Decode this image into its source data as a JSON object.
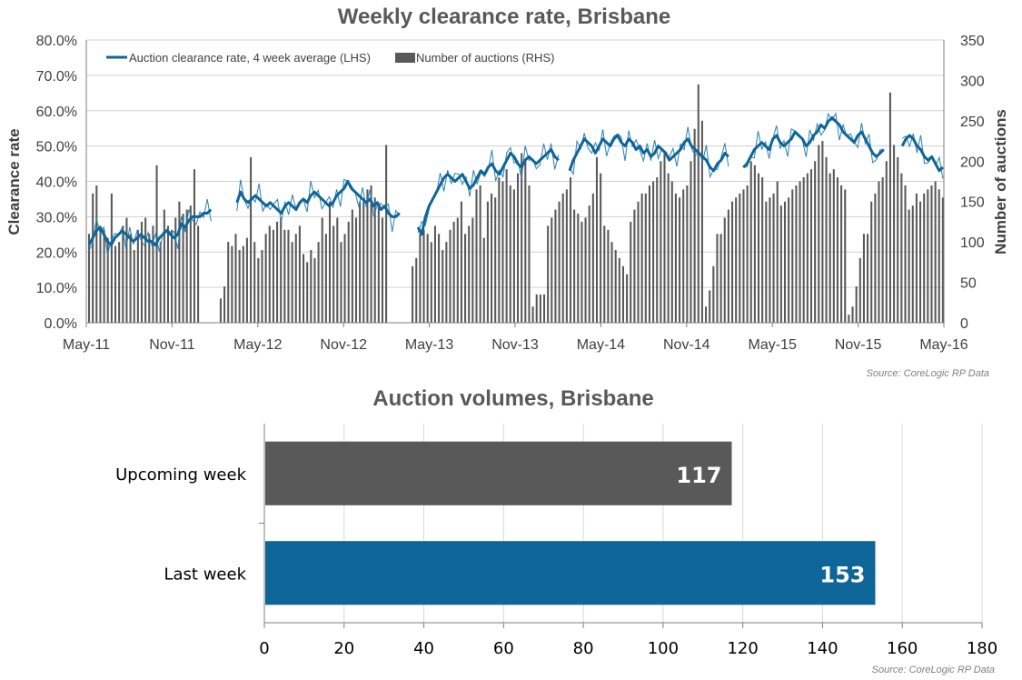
{
  "chart_data": [
    {
      "type": "line+bar",
      "title": "Weekly clearance rate, Brisbane",
      "source": "Source: CoreLogic RP Data",
      "ylabel_left": "Clearance rate",
      "ylabel_right": "Number of auctions",
      "ylim_left": [
        0,
        0.8
      ],
      "ylim_right": [
        0,
        350
      ],
      "yticks_left": [
        "0.0%",
        "10.0%",
        "20.0%",
        "30.0%",
        "40.0%",
        "50.0%",
        "60.0%",
        "70.0%",
        "80.0%"
      ],
      "yticks_right": [
        "0",
        "50",
        "100",
        "150",
        "200",
        "250",
        "300",
        "350"
      ],
      "xticks": [
        "May-11",
        "Nov-11",
        "May-12",
        "Nov-12",
        "May-13",
        "Nov-13",
        "May-14",
        "Nov-14",
        "May-15",
        "Nov-15",
        "May-16"
      ],
      "legend_position": "top-left",
      "grid": true,
      "colors": {
        "line": "#0e6597",
        "line_thin": "#2a7fb4",
        "bars": "#595959"
      },
      "series": [
        {
          "name": "Auction clearance rate, 4 week average (LHS)",
          "kind": "line",
          "axis": "left",
          "start": "2011-05",
          "weekly_values": [
            0.22,
            0.24,
            0.26,
            0.27,
            0.25,
            0.23,
            0.22,
            0.24,
            0.25,
            0.26,
            0.25,
            0.24,
            0.23,
            0.24,
            0.25,
            0.24,
            0.23,
            0.23,
            0.22,
            0.24,
            0.25,
            0.26,
            0.25,
            0.24,
            0.25,
            0.28,
            0.27,
            0.29,
            0.3,
            0.3,
            0.3,
            0.31,
            0.31,
            0.32,
            null,
            null,
            null,
            null,
            null,
            null,
            0.34,
            0.37,
            0.35,
            0.34,
            0.35,
            0.36,
            0.35,
            0.34,
            0.33,
            0.34,
            0.33,
            0.32,
            0.31,
            0.33,
            0.34,
            0.33,
            0.32,
            0.34,
            0.35,
            0.34,
            0.36,
            0.37,
            0.36,
            0.35,
            0.34,
            0.33,
            0.34,
            0.36,
            0.37,
            0.38,
            0.4,
            0.38,
            0.37,
            0.36,
            0.35,
            0.34,
            0.35,
            0.33,
            0.34,
            0.32,
            0.33,
            0.31,
            0.3,
            0.3,
            0.31,
            null,
            null,
            null,
            null,
            0.27,
            0.25,
            0.3,
            0.33,
            0.35,
            0.37,
            0.39,
            0.41,
            0.42,
            0.41,
            0.4,
            0.41,
            0.42,
            0.4,
            0.38,
            0.39,
            0.41,
            0.43,
            0.42,
            0.44,
            0.45,
            0.43,
            0.42,
            0.44,
            0.46,
            0.48,
            0.47,
            0.45,
            0.44,
            0.46,
            0.47,
            0.46,
            0.45,
            0.46,
            0.47,
            0.48,
            0.49,
            0.47,
            0.46,
            null,
            null,
            0.43,
            0.46,
            0.48,
            0.5,
            0.52,
            0.51,
            0.5,
            0.48,
            0.5,
            0.52,
            0.51,
            0.5,
            0.52,
            0.53,
            0.51,
            0.5,
            0.52,
            0.51,
            0.49,
            0.5,
            0.48,
            0.49,
            0.47,
            0.48,
            0.5,
            0.49,
            0.48,
            0.46,
            0.47,
            0.48,
            0.49,
            0.51,
            0.52,
            0.5,
            0.49,
            0.48,
            0.47,
            0.46,
            0.44,
            0.43,
            0.45,
            0.46,
            0.48,
            0.47,
            null,
            null,
            null,
            0.44,
            0.45,
            0.47,
            0.49,
            0.5,
            0.51,
            0.5,
            0.49,
            0.52,
            0.53,
            0.51,
            0.5,
            0.51,
            0.52,
            0.54,
            0.53,
            0.52,
            0.5,
            0.51,
            0.53,
            0.54,
            0.56,
            0.55,
            0.57,
            0.58,
            0.57,
            0.56,
            0.54,
            0.53,
            0.52,
            0.51,
            0.53,
            0.54,
            0.52,
            0.5,
            0.48,
            0.47,
            0.48,
            0.49,
            null,
            null,
            null,
            null,
            0.5,
            0.52,
            0.53,
            0.52,
            0.5,
            0.49,
            0.47,
            0.46,
            0.47,
            0.45,
            0.43,
            0.44
          ]
        },
        {
          "name": "Number of auctions (RHS)",
          "kind": "bar",
          "axis": "right",
          "start": "2011-05",
          "weekly_values": [
            110,
            160,
            170,
            120,
            115,
            105,
            160,
            95,
            100,
            120,
            130,
            110,
            90,
            115,
            125,
            130,
            110,
            120,
            195,
            100,
            140,
            120,
            115,
            130,
            150,
            135,
            140,
            145,
            190,
            120,
            0,
            0,
            0,
            0,
            0,
            30,
            45,
            100,
            95,
            110,
            90,
            95,
            105,
            205,
            100,
            80,
            90,
            110,
            120,
            115,
            125,
            130,
            115,
            115,
            100,
            110,
            120,
            85,
            75,
            90,
            80,
            100,
            130,
            110,
            150,
            120,
            130,
            100,
            110,
            125,
            140,
            130,
            150,
            150,
            165,
            170,
            155,
            145,
            130,
            220,
            0,
            0,
            0,
            0,
            0,
            0,
            70,
            80,
            110,
            115,
            110,
            100,
            120,
            110,
            90,
            100,
            115,
            125,
            130,
            150,
            110,
            120,
            130,
            165,
            170,
            105,
            150,
            160,
            155,
            180,
            175,
            190,
            170,
            165,
            185,
            210,
            200,
            170,
            20,
            35,
            35,
            35,
            120,
            130,
            140,
            150,
            160,
            165,
            180,
            140,
            135,
            125,
            130,
            145,
            160,
            205,
            185,
            120,
            115,
            100,
            90,
            80,
            70,
            60,
            125,
            140,
            150,
            160,
            160,
            170,
            175,
            180,
            200,
            210,
            185,
            175,
            160,
            155,
            165,
            170,
            200,
            240,
            295,
            250,
            20,
            40,
            70,
            110,
            110,
            130,
            140,
            150,
            155,
            160,
            165,
            170,
            200,
            195,
            185,
            180,
            150,
            155,
            160,
            175,
            145,
            150,
            155,
            165,
            170,
            175,
            180,
            185,
            190,
            200,
            220,
            225,
            205,
            185,
            190,
            180,
            170,
            165,
            10,
            20,
            45,
            80,
            110,
            110,
            150,
            160,
            175,
            180,
            200,
            285,
            220,
            205,
            185,
            170,
            140,
            145,
            160,
            150,
            160,
            165,
            170,
            175,
            165,
            155
          ]
        }
      ]
    },
    {
      "type": "bar",
      "orientation": "horizontal",
      "title": "Auction volumes, Brisbane",
      "source": "Source: CoreLogic RP Data",
      "categories": [
        "Upcoming week",
        "Last week"
      ],
      "values": [
        117,
        153
      ],
      "bar_labels": [
        "117",
        "153"
      ],
      "colors": [
        "#595959",
        "#0e6597"
      ],
      "xlim": [
        0,
        180
      ],
      "xticks": [
        "0",
        "20",
        "40",
        "60",
        "80",
        "100",
        "120",
        "140",
        "160",
        "180"
      ],
      "grid": true
    }
  ]
}
